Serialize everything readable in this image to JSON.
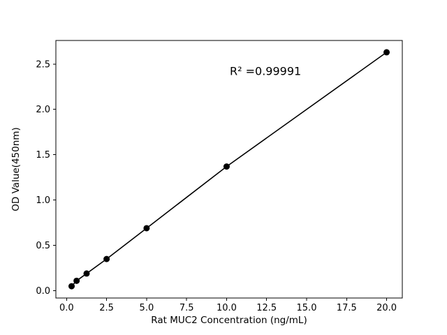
{
  "figure": {
    "background_color": "#ffffff"
  },
  "chart_data": {
    "type": "scatter",
    "title": "",
    "xlabel": "Rat MUC2 Concentration (ng/mL)",
    "ylabel": "OD Value(450nm)",
    "x": [
      0.3125,
      0.625,
      1.25,
      2.5,
      5.0,
      10.0,
      20.0
    ],
    "y": [
      0.05,
      0.11,
      0.19,
      0.35,
      0.69,
      1.37,
      2.63
    ],
    "line_through_points": true,
    "annotation": {
      "text": "R² =0.99991",
      "x": 10.2,
      "y": 2.38
    },
    "xlim": [
      -0.67,
      20.98
    ],
    "ylim": [
      -0.08,
      2.76
    ],
    "xticks": [
      0.0,
      2.5,
      5.0,
      7.5,
      10.0,
      12.5,
      15.0,
      17.5,
      20.0
    ],
    "yticks": [
      0.0,
      0.5,
      1.0,
      1.5,
      2.0,
      2.5
    ],
    "xtick_decimals": 1,
    "ytick_decimals": 1,
    "grid": false,
    "legend": null,
    "marker_color": "#000000",
    "line_color": "#000000",
    "axis_color": "#000000"
  }
}
